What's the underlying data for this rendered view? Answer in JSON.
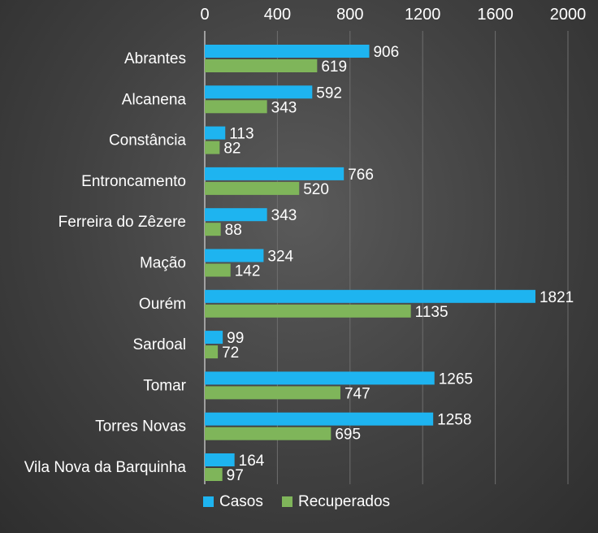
{
  "chart_data": {
    "type": "bar",
    "orientation": "horizontal",
    "categories": [
      "Abrantes",
      "Alcanena",
      "Constância",
      "Entroncamento",
      "Ferreira do Zêzere",
      "Mação",
      "Ourém",
      "Sardoal",
      "Tomar",
      "Torres Novas",
      "Vila Nova da Barquinha"
    ],
    "series": [
      {
        "name": "Casos",
        "color": "#1eb4f0",
        "values": [
          906,
          592,
          113,
          766,
          343,
          324,
          1821,
          99,
          1265,
          1258,
          164
        ]
      },
      {
        "name": "Recuperados",
        "color": "#7fb55a",
        "values": [
          619,
          343,
          82,
          520,
          88,
          142,
          1135,
          72,
          747,
          695,
          97
        ]
      }
    ],
    "xlim": [
      0,
      2000
    ],
    "xticks": [
      "0",
      "400",
      "800",
      "1200",
      "1600",
      "2000"
    ],
    "axis_position": "top",
    "grid": true,
    "legend_position": "bottom"
  }
}
